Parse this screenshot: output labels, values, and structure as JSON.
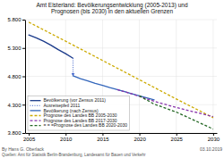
{
  "chart_data": {
    "type": "line",
    "title": "Amt Elsterland: Bevölkerungsentwicklung (2005-2013) und\nPrognosen (bis 2030) in den aktuellen Grenzen",
    "annotations": [
      "By Hans G. Oberlack",
      "Quellen: Amt für Statistik Berlin-Brandenburg, Landesamt für Bauen und Verkehr",
      "03.10.2019"
    ],
    "xlim": [
      2004.5,
      2030.5
    ],
    "ylim": [
      3800,
      5800
    ],
    "xticks": [
      2005,
      2010,
      2015,
      2020,
      2025,
      2030
    ],
    "yticks": [
      {
        "value": 3800,
        "label": "3.800"
      },
      {
        "value": 4300,
        "label": "4.300"
      },
      {
        "value": 4800,
        "label": "4.800"
      },
      {
        "value": 5300,
        "label": "5.300"
      },
      {
        "value": 5800,
        "label": "5.800"
      }
    ],
    "grid": true,
    "legend": "lower left",
    "series": [
      {
        "name": "Bevölkerung (vor Zensus 2011)",
        "type": "line",
        "color": "#1a3a8a",
        "line_style": "solid",
        "x": [
          2005,
          2006,
          2007,
          2008,
          2009,
          2010,
          2011
        ],
        "values": [
          5530,
          5480,
          5420,
          5350,
          5270,
          5200,
          5120
        ]
      },
      {
        "name": "Ausreisepfeil 2011",
        "type": "line",
        "color": "#4466cc",
        "line_style": "dotted",
        "marker": "arrow",
        "x": [
          2011,
          2011
        ],
        "values": [
          5120,
          4810
        ]
      },
      {
        "name": "Bevölkerung (nach Zensus)",
        "type": "line",
        "color": "#3366bb",
        "line_style": "solid",
        "x": [
          2011,
          2012,
          2013,
          2014,
          2015,
          2016,
          2017,
          2018,
          2019,
          2020,
          2021,
          2022
        ],
        "values": [
          4810,
          4760,
          4720,
          4675,
          4640,
          4600,
          4565,
          4530,
          4490,
          4455,
          4420,
          4385
        ]
      },
      {
        "name": "Prognose des Landes BB 2005-2030",
        "type": "line",
        "color": "#ccaa00",
        "line_style": "dashed",
        "x": [
          2005,
          2010,
          2015,
          2020,
          2025,
          2030
        ],
        "values": [
          5755,
          5420,
          5080,
          4740,
          4400,
          4070
        ]
      },
      {
        "name": "Prognose des Landes BB 2017-2030",
        "type": "line",
        "color": "#8833aa",
        "line_style": "dashed",
        "x": [
          2017,
          2019,
          2022,
          2025,
          2030
        ],
        "values": [
          4565,
          4490,
          4360,
          4250,
          4090
        ]
      },
      {
        "name": "= = =Prognose des Landes BB 2020-2030",
        "type": "line",
        "color": "#226622",
        "line_style": "dashed",
        "x": [
          2020,
          2022,
          2025,
          2030
        ],
        "values": [
          4455,
          4310,
          4170,
          3870
        ]
      }
    ]
  }
}
